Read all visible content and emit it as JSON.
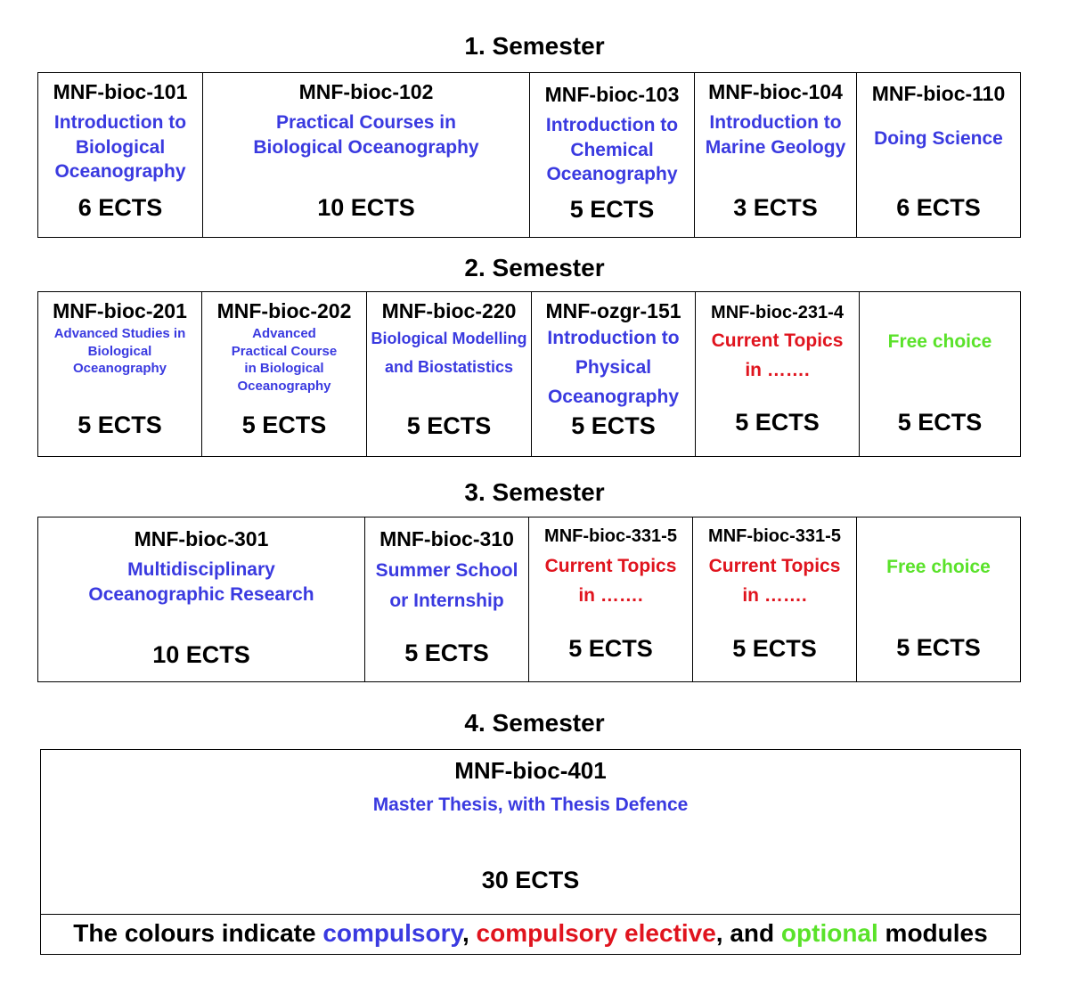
{
  "semesters": [
    {
      "heading": "1. Semester",
      "modules": [
        {
          "code": "MNF-bioc-101",
          "title": "Introduction to Biological Oceanography",
          "ects": "6 ECTS"
        },
        {
          "code": "MNF-bioc-102",
          "title": "Practical Courses in Biological Oceanography",
          "ects": "10 ECTS"
        },
        {
          "code": "MNF-bioc-103",
          "title": "Introduction to Chemical Oceanography",
          "ects": "5 ECTS"
        },
        {
          "code": "MNF-bioc-104",
          "title": "Introduction to Marine Geology",
          "ects": "3 ECTS"
        },
        {
          "code": "MNF-bioc-110",
          "title": "Doing Science",
          "ects": "6 ECTS"
        }
      ]
    },
    {
      "heading": "2. Semester",
      "modules": [
        {
          "code": "MNF-bioc-201",
          "title": "Advanced Studies in Biological Oceanography",
          "ects": "5 ECTS"
        },
        {
          "code": "MNF-bioc-202",
          "title": "Advanced Practical Course in Biological Oceanography",
          "ects": "5 ECTS"
        },
        {
          "code": "MNF-bioc-220",
          "title": "Biological Modelling and Biostatistics",
          "ects": "5 ECTS"
        },
        {
          "code": "MNF-ozgr-151",
          "title": "Introduction to Physical Oceanography",
          "ects": "5 ECTS"
        },
        {
          "code": "MNF-bioc-231-4",
          "title": "Current Topics in …….",
          "ects": "5 ECTS"
        },
        {
          "code": "",
          "title": "Free choice",
          "ects": "5 ECTS"
        }
      ]
    },
    {
      "heading": "3. Semester",
      "modules": [
        {
          "code": "MNF-bioc-301",
          "title": "Multidisciplinary Oceanographic Research",
          "ects": "10 ECTS"
        },
        {
          "code": "MNF-bioc-310",
          "title": "Summer School or Internship",
          "ects": "5 ECTS"
        },
        {
          "code": "MNF-bioc-331-5",
          "title": "Current Topics in …….",
          "ects": "5 ECTS"
        },
        {
          "code": "MNF-bioc-331-5",
          "title": "Current Topics in …….",
          "ects": "5 ECTS"
        },
        {
          "code": "",
          "title": "Free choice",
          "ects": "5 ECTS"
        }
      ]
    },
    {
      "heading": "4. Semester",
      "modules": [
        {
          "code": "MNF-bioc-401",
          "title": "Master Thesis, with Thesis Defence",
          "ects": "30 ECTS"
        }
      ]
    }
  ],
  "legend": {
    "prefix": "The colours indicate ",
    "compulsory": "compulsory",
    "sep1": ", ",
    "elective": "compulsory elective",
    "sep2": ", and ",
    "optional": "optional",
    "suffix": " modules"
  },
  "colors": {
    "compulsory": "#3a3ae0",
    "compulsory_elective": "#e0141e",
    "optional": "#5ae22a"
  }
}
